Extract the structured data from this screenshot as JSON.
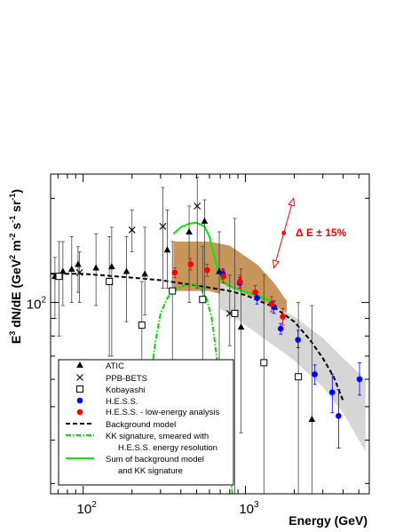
{
  "chart_data": {
    "type": "scatter",
    "x_scale": "log",
    "y_scale": "log",
    "xlim": [
      63,
      5800
    ],
    "ylim": [
      28,
      235
    ],
    "xlabel": "Energy  (GeV)",
    "ylabel_parts": {
      "e": "E",
      "e_sup": "3",
      "mid": " dN/dE (GeV",
      "m_sup": "2",
      "m": " m",
      "m_exp": "-2",
      "s": " s",
      "s_exp": "-1",
      "sr": " sr",
      "sr_exp": "-1",
      "close": ")"
    },
    "x_tick_labels": [
      {
        "value": 100,
        "base": "10",
        "exp": "2"
      },
      {
        "value": 1000,
        "base": "10",
        "exp": "3"
      }
    ],
    "y_tick_labels": [
      {
        "value": 100,
        "base": "10",
        "exp": "2"
      }
    ],
    "grid": false,
    "legend_position": "bottom-left",
    "annotation": {
      "text": "Δ E ± 15%",
      "x": 1870,
      "y": 160,
      "arrow_low": [
        1500,
        126
      ],
      "arrow_high": [
        1980,
        200
      ],
      "color": "#ff0000"
    },
    "series": [
      {
        "name": "ATIC",
        "marker": "triangle",
        "color": "#000000",
        "points": [
          {
            "x": 67,
            "y": 119,
            "lo": 90,
            "hi": 135
          },
          {
            "x": 75,
            "y": 123,
            "lo": 98,
            "hi": 150
          },
          {
            "x": 85,
            "y": 125,
            "lo": 100,
            "hi": 155
          },
          {
            "x": 93,
            "y": 129,
            "lo": 107,
            "hi": 145
          },
          {
            "x": 120,
            "y": 126,
            "lo": 98,
            "hi": 158
          },
          {
            "x": 150,
            "y": 127,
            "lo": 70,
            "hi": 165
          },
          {
            "x": 185,
            "y": 123,
            "lo": 88,
            "hi": 155
          },
          {
            "x": 240,
            "y": 121,
            "lo": 92,
            "hi": 165
          },
          {
            "x": 330,
            "y": 142,
            "lo": 110,
            "hi": 185
          },
          {
            "x": 450,
            "y": 160,
            "lo": 100,
            "hi": 190
          },
          {
            "x": 560,
            "y": 172,
            "lo": 100,
            "hi": 198
          },
          {
            "x": 690,
            "y": 123,
            "lo": 60,
            "hi": 160
          },
          {
            "x": 940,
            "y": 85,
            "lo": 42,
            "hi": 125
          },
          {
            "x": 2570,
            "y": 46,
            "lo": 28,
            "hi": 98
          }
        ]
      },
      {
        "name": "PPB-BETS",
        "marker": "x",
        "color": "#000000",
        "points": [
          {
            "x": 95,
            "y": 122,
            "lo": 100,
            "hi": 140
          },
          {
            "x": 200,
            "y": 162,
            "lo": 140,
            "hi": 185
          },
          {
            "x": 310,
            "y": 166,
            "lo": 110,
            "hi": 215
          },
          {
            "x": 505,
            "y": 190,
            "lo": 110,
            "hi": 230
          },
          {
            "x": 800,
            "y": 93,
            "lo": 75,
            "hi": 120
          }
        ]
      },
      {
        "name": "Kobayashi",
        "marker": "square-open",
        "color": "#000000",
        "points": [
          {
            "x": 71,
            "y": 119,
            "lo": 80,
            "hi": 150
          },
          {
            "x": 145,
            "y": 115,
            "lo": 70,
            "hi": 155
          },
          {
            "x": 230,
            "y": 86,
            "lo": 65,
            "hi": 115
          },
          {
            "x": 355,
            "y": 108,
            "lo": 60,
            "hi": 150
          },
          {
            "x": 545,
            "y": 102,
            "lo": 55,
            "hi": 145
          },
          {
            "x": 860,
            "y": 93,
            "lo": 28,
            "hi": 175
          },
          {
            "x": 1300,
            "y": 67,
            "lo": 28,
            "hi": 120
          },
          {
            "x": 2120,
            "y": 61,
            "lo": 28,
            "hi": 100
          }
        ]
      },
      {
        "name": "H.E.S.S.",
        "marker": "circle",
        "color": "#0000ff",
        "points": [
          {
            "x": 726,
            "y": 121,
            "lo": 117,
            "hi": 125
          },
          {
            "x": 923,
            "y": 114,
            "lo": 110,
            "hi": 118
          },
          {
            "x": 1180,
            "y": 103,
            "lo": 99,
            "hi": 107
          },
          {
            "x": 1500,
            "y": 97,
            "lo": 93,
            "hi": 101
          },
          {
            "x": 1650,
            "y": 84,
            "lo": 81,
            "hi": 87
          },
          {
            "x": 2110,
            "y": 78,
            "lo": 74,
            "hi": 83
          },
          {
            "x": 2680,
            "y": 62,
            "lo": 58,
            "hi": 66
          },
          {
            "x": 3430,
            "y": 55,
            "lo": 48,
            "hi": 62
          },
          {
            "x": 3750,
            "y": 47,
            "lo": 38,
            "hi": 56
          },
          {
            "x": 5050,
            "y": 60,
            "lo": 54,
            "hi": 67
          }
        ]
      },
      {
        "name": "H.E.S.S. - low-energy analysis",
        "marker": "circle",
        "color": "#ff0000",
        "points": [
          {
            "x": 367,
            "y": 122,
            "lo": 118,
            "hi": 126
          },
          {
            "x": 460,
            "y": 129,
            "lo": 124,
            "hi": 134
          },
          {
            "x": 581,
            "y": 124,
            "lo": 119,
            "hi": 129
          },
          {
            "x": 733,
            "y": 119,
            "lo": 114,
            "hi": 124
          },
          {
            "x": 925,
            "y": 115,
            "lo": 110,
            "hi": 120
          },
          {
            "x": 1150,
            "y": 107,
            "lo": 102,
            "hi": 112
          },
          {
            "x": 1450,
            "y": 99,
            "lo": 94,
            "hi": 104
          },
          {
            "x": 1700,
            "y": 91,
            "lo": 86,
            "hi": 96
          }
        ]
      },
      {
        "name": "Background model",
        "line": "dashed",
        "color": "#000000",
        "points": [
          {
            "x": 63,
            "y": 121
          },
          {
            "x": 100,
            "y": 121
          },
          {
            "x": 200,
            "y": 118
          },
          {
            "x": 300,
            "y": 116
          },
          {
            "x": 500,
            "y": 112
          },
          {
            "x": 800,
            "y": 108
          },
          {
            "x": 1000,
            "y": 105
          },
          {
            "x": 1500,
            "y": 97
          },
          {
            "x": 2000,
            "y": 88
          },
          {
            "x": 2500,
            "y": 78
          },
          {
            "x": 3000,
            "y": 69
          },
          {
            "x": 3500,
            "y": 61
          },
          {
            "x": 4000,
            "y": 52
          }
        ]
      },
      {
        "name": "KK signature, smeared with H.E.S.S. energy resolution",
        "legend_lines": [
          "KK signature, smeared with",
          "H.E.S.S. energy resolution"
        ],
        "line": "dash-dot",
        "color": "#00dd00",
        "points": [
          {
            "x": 260,
            "y": 60
          },
          {
            "x": 280,
            "y": 78
          },
          {
            "x": 300,
            "y": 93
          },
          {
            "x": 330,
            "y": 103
          },
          {
            "x": 370,
            "y": 109
          },
          {
            "x": 420,
            "y": 112
          },
          {
            "x": 480,
            "y": 113
          },
          {
            "x": 530,
            "y": 110
          },
          {
            "x": 580,
            "y": 102
          },
          {
            "x": 620,
            "y": 90
          },
          {
            "x": 650,
            "y": 76
          },
          {
            "x": 680,
            "y": 64
          },
          {
            "x": 720,
            "y": 53
          },
          {
            "x": 760,
            "y": 44
          },
          {
            "x": 790,
            "y": 36
          },
          {
            "x": 830,
            "y": 28
          }
        ]
      },
      {
        "name": "Sum of background model and KK signature",
        "legend_lines": [
          "Sum of background model",
          "and KK signature"
        ],
        "line": "solid",
        "color": "#00ee00",
        "points": [
          {
            "x": 360,
            "y": 158
          },
          {
            "x": 400,
            "y": 165
          },
          {
            "x": 450,
            "y": 169
          },
          {
            "x": 500,
            "y": 170
          },
          {
            "x": 560,
            "y": 166
          },
          {
            "x": 600,
            "y": 155
          },
          {
            "x": 640,
            "y": 138
          },
          {
            "x": 680,
            "y": 123
          },
          {
            "x": 720,
            "y": 116
          },
          {
            "x": 780,
            "y": 112
          },
          {
            "x": 850,
            "y": 110
          },
          {
            "x": 950,
            "y": 108
          },
          {
            "x": 1100,
            "y": 106
          },
          {
            "x": 1300,
            "y": 103
          },
          {
            "x": 1500,
            "y": 100
          }
        ]
      }
    ],
    "bands": [
      {
        "role": "systematic-band-low-energy",
        "color": "#c8955a",
        "points": [
          [
            360,
            150
          ],
          [
            600,
            150
          ],
          [
            800,
            146
          ],
          [
            1000,
            136
          ],
          [
            1200,
            128
          ],
          [
            1500,
            114
          ],
          [
            1800,
            101
          ],
          [
            1800,
            78
          ],
          [
            1500,
            88
          ],
          [
            1200,
            96
          ],
          [
            1000,
            101
          ],
          [
            800,
            104
          ],
          [
            600,
            108
          ],
          [
            360,
            108
          ]
        ]
      },
      {
        "role": "systematic-band-hess",
        "color": "#d6d6d6",
        "points": [
          [
            700,
            114
          ],
          [
            1000,
            106
          ],
          [
            1500,
            98
          ],
          [
            2000,
            91
          ],
          [
            3000,
            79
          ],
          [
            4000,
            69
          ],
          [
            5500,
            60
          ],
          [
            5500,
            37
          ],
          [
            4000,
            48
          ],
          [
            3000,
            57
          ],
          [
            2000,
            68
          ],
          [
            1500,
            75
          ],
          [
            1000,
            86
          ],
          [
            700,
            96
          ]
        ]
      }
    ]
  }
}
